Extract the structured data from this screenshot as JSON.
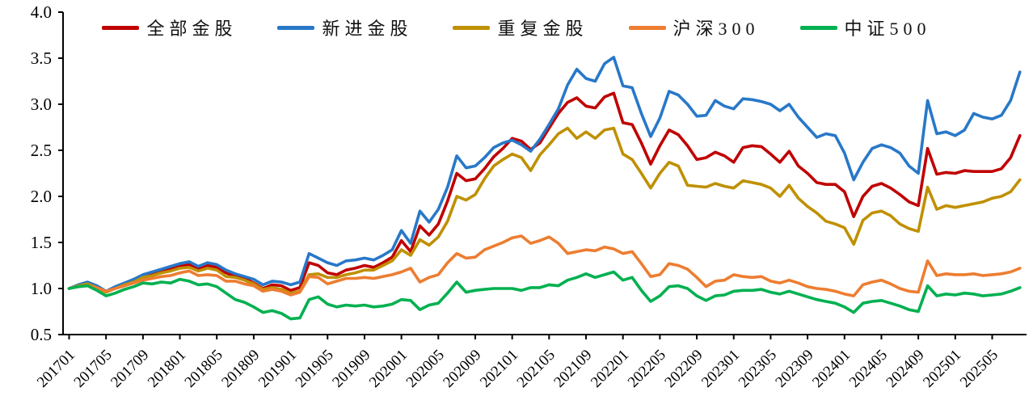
{
  "chart_data": {
    "type": "line",
    "title": "",
    "xlabel": "",
    "ylabel": "",
    "grid": false,
    "legend_position": "top",
    "ylim": [
      0.5,
      4.0
    ],
    "y_ticks": [
      4.0,
      3.5,
      3.0,
      2.5,
      2.0,
      1.5,
      1.0,
      0.5
    ],
    "x_tick_labels": [
      "201701",
      "201705",
      "201709",
      "201801",
      "201805",
      "201809",
      "201901",
      "201905",
      "201909",
      "202001",
      "202005",
      "202009",
      "202101",
      "202105",
      "202109",
      "202201",
      "202205",
      "202209",
      "202301",
      "202305",
      "202309",
      "202401",
      "202405",
      "202409",
      "202501",
      "202505"
    ],
    "x_start": "201701",
    "x_step": "1 month",
    "points_per_series": 104,
    "series": [
      {
        "name": "全部金股",
        "color": "#C00000",
        "values": [
          1.0,
          1.03,
          1.06,
          1.02,
          0.97,
          1.01,
          1.05,
          1.08,
          1.13,
          1.15,
          1.18,
          1.21,
          1.24,
          1.26,
          1.21,
          1.25,
          1.23,
          1.17,
          1.13,
          1.11,
          1.06,
          1.0,
          1.04,
          1.03,
          0.98,
          1.01,
          1.28,
          1.25,
          1.17,
          1.15,
          1.2,
          1.22,
          1.25,
          1.23,
          1.28,
          1.34,
          1.52,
          1.4,
          1.68,
          1.58,
          1.7,
          1.95,
          2.25,
          2.17,
          2.19,
          2.3,
          2.43,
          2.52,
          2.63,
          2.6,
          2.51,
          2.58,
          2.74,
          2.9,
          3.02,
          3.07,
          2.98,
          2.96,
          3.08,
          3.12,
          2.8,
          2.78,
          2.58,
          2.35,
          2.55,
          2.72,
          2.67,
          2.55,
          2.4,
          2.42,
          2.48,
          2.44,
          2.37,
          2.53,
          2.55,
          2.54,
          2.46,
          2.37,
          2.49,
          2.33,
          2.25,
          2.15,
          2.13,
          2.13,
          2.05,
          1.78,
          2.0,
          2.11,
          2.14,
          2.09,
          2.02,
          1.94,
          1.9,
          2.52,
          2.24,
          2.26,
          2.25,
          2.28,
          2.27,
          2.27,
          2.27,
          2.3,
          2.42,
          2.66
        ]
      },
      {
        "name": "新进金股",
        "color": "#2878C8",
        "values": [
          1.0,
          1.04,
          1.07,
          1.03,
          0.97,
          1.02,
          1.06,
          1.1,
          1.15,
          1.18,
          1.21,
          1.24,
          1.27,
          1.29,
          1.24,
          1.28,
          1.26,
          1.2,
          1.16,
          1.13,
          1.1,
          1.04,
          1.08,
          1.07,
          1.04,
          1.07,
          1.38,
          1.33,
          1.28,
          1.25,
          1.3,
          1.31,
          1.33,
          1.31,
          1.36,
          1.42,
          1.63,
          1.49,
          1.84,
          1.72,
          1.86,
          2.1,
          2.44,
          2.31,
          2.33,
          2.42,
          2.53,
          2.58,
          2.61,
          2.56,
          2.49,
          2.62,
          2.78,
          2.95,
          3.21,
          3.38,
          3.28,
          3.25,
          3.44,
          3.51,
          3.2,
          3.18,
          2.9,
          2.65,
          2.85,
          3.14,
          3.1,
          3.0,
          2.87,
          2.88,
          3.04,
          2.98,
          2.95,
          3.06,
          3.05,
          3.03,
          3.0,
          2.93,
          3.0,
          2.86,
          2.75,
          2.64,
          2.68,
          2.66,
          2.47,
          2.18,
          2.37,
          2.52,
          2.56,
          2.53,
          2.47,
          2.33,
          2.25,
          3.04,
          2.68,
          2.7,
          2.66,
          2.72,
          2.9,
          2.86,
          2.84,
          2.88,
          3.04,
          3.35
        ]
      },
      {
        "name": "重复金股",
        "color": "#BF9000",
        "values": [
          1.0,
          1.03,
          1.05,
          1.01,
          0.96,
          1.0,
          1.04,
          1.07,
          1.12,
          1.14,
          1.17,
          1.19,
          1.22,
          1.23,
          1.19,
          1.22,
          1.2,
          1.13,
          1.12,
          1.09,
          1.05,
          0.99,
          1.01,
          0.99,
          0.95,
          0.97,
          1.15,
          1.16,
          1.12,
          1.12,
          1.15,
          1.17,
          1.2,
          1.2,
          1.25,
          1.3,
          1.42,
          1.36,
          1.53,
          1.47,
          1.56,
          1.73,
          2.0,
          1.96,
          2.02,
          2.19,
          2.33,
          2.4,
          2.46,
          2.42,
          2.28,
          2.45,
          2.56,
          2.68,
          2.74,
          2.63,
          2.7,
          2.63,
          2.72,
          2.74,
          2.46,
          2.4,
          2.25,
          2.09,
          2.25,
          2.37,
          2.33,
          2.12,
          2.11,
          2.1,
          2.14,
          2.11,
          2.09,
          2.17,
          2.15,
          2.13,
          2.09,
          2.0,
          2.12,
          1.98,
          1.89,
          1.82,
          1.73,
          1.7,
          1.66,
          1.48,
          1.74,
          1.82,
          1.84,
          1.79,
          1.7,
          1.65,
          1.62,
          2.1,
          1.86,
          1.9,
          1.88,
          1.9,
          1.92,
          1.94,
          1.98,
          2.0,
          2.05,
          2.18
        ]
      },
      {
        "name": "沪深300",
        "color": "#ED7D31",
        "values": [
          1.0,
          1.02,
          1.03,
          1.01,
          0.97,
          1.0,
          1.03,
          1.06,
          1.09,
          1.11,
          1.13,
          1.14,
          1.17,
          1.19,
          1.14,
          1.15,
          1.14,
          1.08,
          1.08,
          1.05,
          1.03,
          0.97,
          0.99,
          0.97,
          0.93,
          0.96,
          1.13,
          1.12,
          1.05,
          1.08,
          1.11,
          1.11,
          1.12,
          1.11,
          1.13,
          1.15,
          1.18,
          1.22,
          1.07,
          1.12,
          1.15,
          1.28,
          1.38,
          1.33,
          1.34,
          1.42,
          1.46,
          1.5,
          1.55,
          1.57,
          1.49,
          1.52,
          1.56,
          1.49,
          1.38,
          1.4,
          1.42,
          1.41,
          1.45,
          1.43,
          1.38,
          1.4,
          1.27,
          1.13,
          1.15,
          1.27,
          1.25,
          1.21,
          1.12,
          1.02,
          1.08,
          1.09,
          1.15,
          1.13,
          1.12,
          1.13,
          1.08,
          1.06,
          1.09,
          1.06,
          1.02,
          1.0,
          0.99,
          0.97,
          0.94,
          0.92,
          1.04,
          1.07,
          1.09,
          1.05,
          1.0,
          0.97,
          0.96,
          1.3,
          1.14,
          1.16,
          1.15,
          1.15,
          1.16,
          1.14,
          1.15,
          1.16,
          1.18,
          1.22
        ]
      },
      {
        "name": "中证500",
        "color": "#00B050",
        "values": [
          1.0,
          1.02,
          1.03,
          0.98,
          0.92,
          0.95,
          0.99,
          1.02,
          1.06,
          1.05,
          1.07,
          1.06,
          1.1,
          1.08,
          1.04,
          1.05,
          1.02,
          0.95,
          0.88,
          0.85,
          0.8,
          0.74,
          0.76,
          0.73,
          0.67,
          0.68,
          0.88,
          0.91,
          0.83,
          0.8,
          0.82,
          0.81,
          0.82,
          0.8,
          0.81,
          0.83,
          0.88,
          0.87,
          0.77,
          0.82,
          0.84,
          0.95,
          1.07,
          0.96,
          0.98,
          0.99,
          1.0,
          1.0,
          1.0,
          0.98,
          1.01,
          1.01,
          1.04,
          1.03,
          1.09,
          1.12,
          1.16,
          1.12,
          1.15,
          1.18,
          1.09,
          1.12,
          0.98,
          0.86,
          0.92,
          1.02,
          1.03,
          1.0,
          0.92,
          0.87,
          0.92,
          0.93,
          0.97,
          0.98,
          0.98,
          0.99,
          0.96,
          0.94,
          0.97,
          0.94,
          0.91,
          0.88,
          0.86,
          0.84,
          0.8,
          0.74,
          0.84,
          0.86,
          0.87,
          0.84,
          0.81,
          0.77,
          0.75,
          1.03,
          0.92,
          0.94,
          0.93,
          0.95,
          0.94,
          0.92,
          0.93,
          0.94,
          0.97,
          1.01
        ]
      }
    ]
  }
}
